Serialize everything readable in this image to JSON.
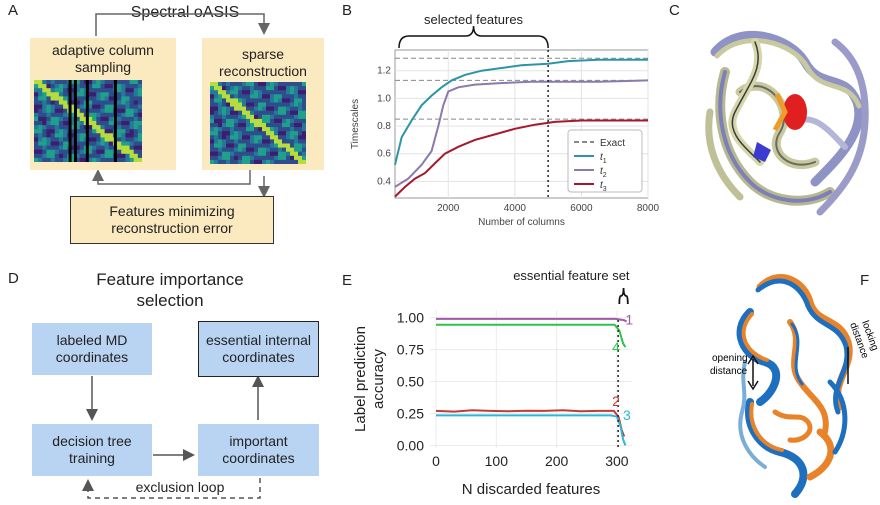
{
  "panel_letters": {
    "a": "A",
    "b": "B",
    "c": "C",
    "d": "D",
    "e": "E",
    "f": "F"
  },
  "panel_a": {
    "title": "Spectral oASIS",
    "sampling_label": "adaptive column sampling",
    "reconstruction_label": "sparse reconstruction",
    "output_label": "Features minimizing reconstruction error"
  },
  "panel_b": {
    "brace_label": "selected features",
    "legend": {
      "exact": "Exact",
      "t1": "t",
      "t1_sub": "1",
      "t2": "t",
      "t2_sub": "2",
      "t3": "t",
      "t3_sub": "3"
    }
  },
  "panel_d": {
    "title_line1": "Feature importance",
    "title_line2": "selection",
    "labeled_md": "labeled MD coordinates",
    "essential": "essential internal coordinates",
    "decision_tree": "decision tree training",
    "important": "important coordinates",
    "loop": "exclusion loop"
  },
  "panel_e": {
    "brace_label": "essential feature set",
    "curve_labels": {
      "c1": "1",
      "c2": "2",
      "c3": "3",
      "c4": "4"
    }
  },
  "panel_f": {
    "opening": "opening distance",
    "locking": "locking distance"
  },
  "chart_data": [
    {
      "type": "line",
      "xlabel": "Number of columns",
      "ylabel": "Timescales",
      "xlim": [
        400,
        8000
      ],
      "ylim": [
        0.28,
        1.35
      ],
      "xticks": [
        2000,
        4000,
        6000,
        8000
      ],
      "yticks": [
        0.4,
        0.6,
        0.8,
        1.0,
        1.2
      ],
      "grid": true,
      "legend_position": "bottom-right",
      "vline_x": 5000,
      "exact": [
        1.29,
        1.13,
        0.85
      ],
      "series": [
        {
          "name": "t1",
          "color": "#2b95a8",
          "x": [
            400,
            600,
            900,
            1200,
            1500,
            1800,
            2100,
            2500,
            3000,
            3600,
            4200,
            5000,
            5600,
            6500,
            8000
          ],
          "y": [
            0.52,
            0.72,
            0.84,
            0.95,
            1.02,
            1.08,
            1.13,
            1.17,
            1.2,
            1.22,
            1.24,
            1.25,
            1.27,
            1.28,
            1.28
          ]
        },
        {
          "name": "t2",
          "color": "#8a7aae",
          "x": [
            400,
            800,
            1200,
            1500,
            1700,
            1850,
            2000,
            2300,
            2800,
            3500,
            4500,
            5500,
            6500,
            8000
          ],
          "y": [
            0.36,
            0.42,
            0.52,
            0.62,
            0.8,
            0.95,
            1.05,
            1.08,
            1.1,
            1.11,
            1.12,
            1.12,
            1.12,
            1.13
          ]
        },
        {
          "name": "t3",
          "color": "#a8182c",
          "x": [
            400,
            700,
            1000,
            1300,
            1600,
            1900,
            2300,
            2800,
            3400,
            4000,
            4600,
            5200,
            6000,
            7000,
            8000
          ],
          "y": [
            0.29,
            0.36,
            0.42,
            0.46,
            0.53,
            0.6,
            0.65,
            0.7,
            0.74,
            0.78,
            0.81,
            0.83,
            0.84,
            0.84,
            0.84
          ]
        }
      ]
    },
    {
      "type": "line",
      "xlabel": "N discarded features",
      "ylabel": "Label prediction accuracy",
      "xlim": [
        -10,
        325
      ],
      "ylim": [
        -0.02,
        1.06
      ],
      "xticks": [
        0,
        100,
        200,
        300
      ],
      "yticks": [
        0.0,
        0.25,
        0.5,
        0.75,
        1.0
      ],
      "ytick_labels": [
        "0.00",
        "0.25",
        "0.50",
        "0.75",
        "1.00"
      ],
      "grid": true,
      "vline_x": 302,
      "series": [
        {
          "name": "1",
          "color": "#a05aa8",
          "x": [
            0,
            100,
            200,
            298,
            306,
            312,
            316
          ],
          "y": [
            0.99,
            0.99,
            0.99,
            0.99,
            0.985,
            0.98,
            0.97
          ]
        },
        {
          "name": "4",
          "color": "#2ec24a",
          "x": [
            0,
            100,
            200,
            296,
            304,
            310,
            314
          ],
          "y": [
            0.945,
            0.945,
            0.945,
            0.945,
            0.9,
            0.8,
            0.77
          ]
        },
        {
          "name": "2",
          "color": "#c23a3a",
          "x": [
            0,
            30,
            60,
            90,
            120,
            150,
            180,
            210,
            240,
            270,
            295,
            303,
            308,
            312
          ],
          "y": [
            0.27,
            0.265,
            0.275,
            0.27,
            0.268,
            0.272,
            0.27,
            0.275,
            0.268,
            0.27,
            0.27,
            0.22,
            0.12,
            0.07
          ]
        },
        {
          "name": "3",
          "color": "#2ab8d8",
          "x": [
            0,
            100,
            200,
            290,
            300,
            306,
            310,
            314
          ],
          "y": [
            0.235,
            0.235,
            0.235,
            0.235,
            0.225,
            0.15,
            0.05,
            0.0
          ]
        }
      ]
    }
  ]
}
